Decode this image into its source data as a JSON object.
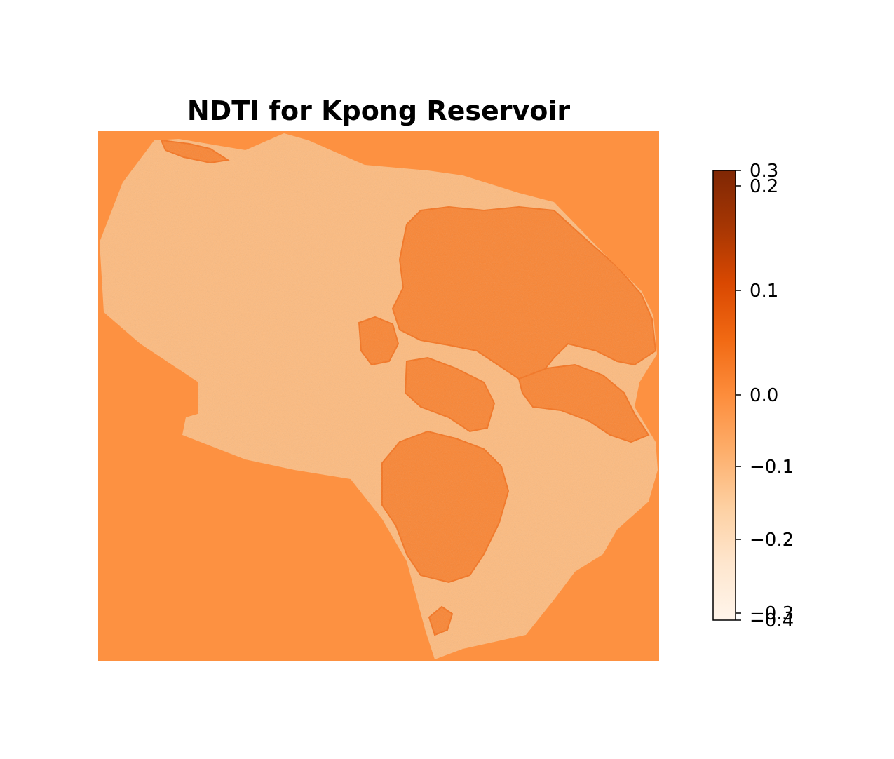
{
  "chart_data": {
    "type": "heatmap",
    "title": "NDTI for Kpong Reservoir",
    "xlabel": "",
    "ylabel": "",
    "axes_visible": false,
    "grid": false,
    "colormap": "Oranges",
    "colormap_stops": [
      "#fff5eb",
      "#fee6ce",
      "#fdd0a2",
      "#fdae6b",
      "#fd8d3c",
      "#f16913",
      "#d94801",
      "#a63603",
      "#7f2704"
    ],
    "background_value": -0.06,
    "reservoir_typical_value": -0.17,
    "vegetated_patch_typical_value": -0.03,
    "colorbar": {
      "placement": "right",
      "range": [
        -0.4,
        0.3
      ],
      "tick_values": [
        0.3,
        0.2,
        0.1,
        0.0,
        -0.1,
        -0.2,
        -0.3,
        -0.4
      ],
      "tick_labels": [
        "0.3",
        "0.2",
        "0.1",
        "0.0",
        "−0.1",
        "−0.2",
        "−0.3",
        "−0.4"
      ]
    }
  }
}
